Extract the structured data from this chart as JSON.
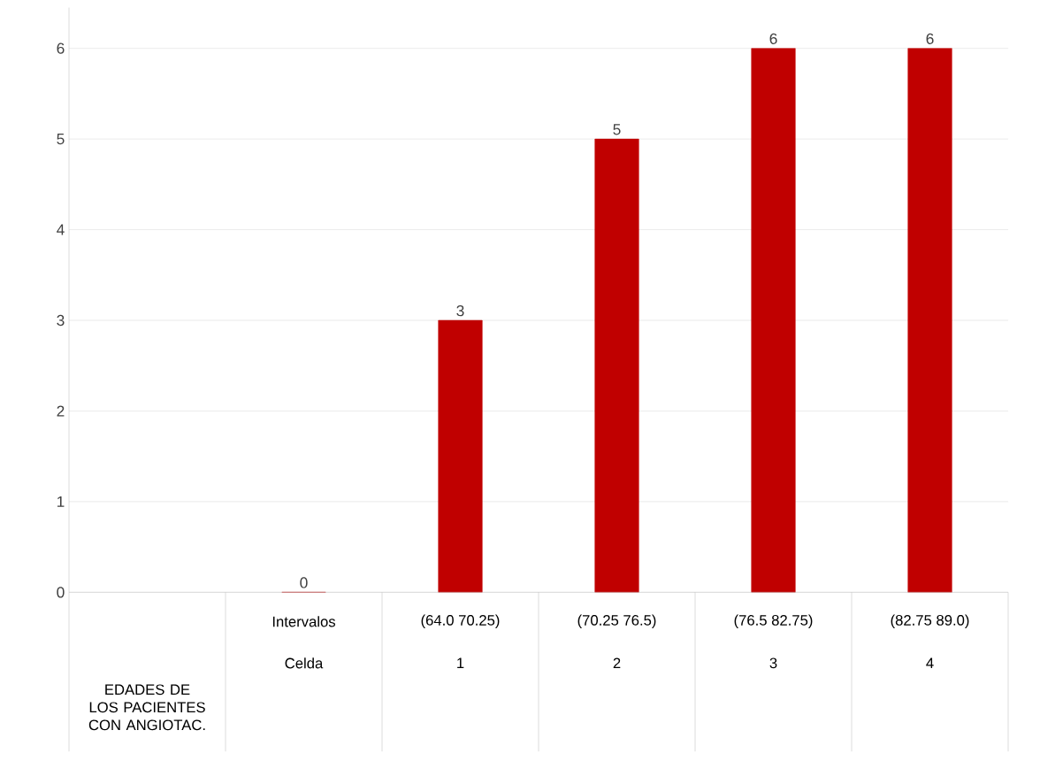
{
  "chart_data": {
    "type": "bar",
    "xlabel": "EDADES DE LOS PACIENTES CON ANGIOTAC.",
    "categories": [
      null,
      "Intervalos",
      "(64.0    70.25)",
      "(70.25    76.5)",
      "(76.5    82.75)",
      "(82.75    89.0)"
    ],
    "annotations": [
      "Celda",
      "1",
      "2",
      "3",
      "4"
    ],
    "values": [
      null,
      0,
      3,
      5,
      6,
      6
    ],
    "color": "#c00000",
    "ylim": [
      0,
      6
    ],
    "yticks": [
      0,
      1,
      2,
      3,
      4,
      5,
      6
    ],
    "grid": "y",
    "data_labels": true
  }
}
